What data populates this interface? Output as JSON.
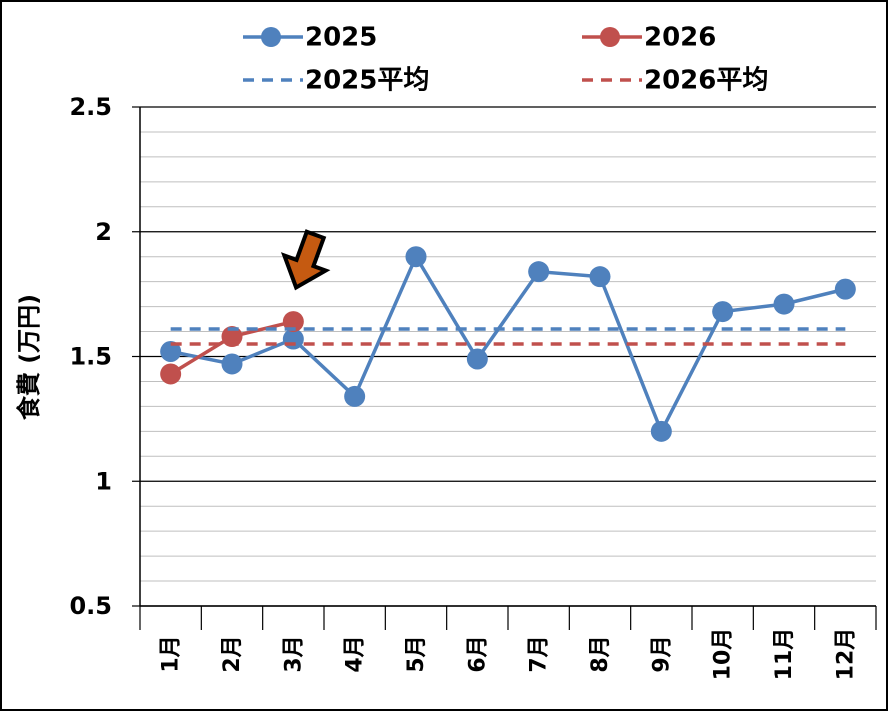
{
  "chart_data": {
    "type": "line",
    "y_label": "食費 (万円)",
    "categories": [
      "1月",
      "2月",
      "3月",
      "4月",
      "5月",
      "6月",
      "7月",
      "8月",
      "9月",
      "10月",
      "11月",
      "12月"
    ],
    "series": [
      {
        "name": "2025",
        "color": "#4f81bd",
        "values": [
          1.52,
          1.47,
          1.57,
          1.34,
          1.9,
          1.49,
          1.84,
          1.82,
          1.2,
          1.68,
          1.71,
          1.77
        ]
      },
      {
        "name": "2026",
        "color": "#c0504d",
        "values": [
          1.43,
          1.58,
          1.64,
          null,
          null,
          null,
          null,
          null,
          null,
          null,
          null,
          null
        ]
      },
      {
        "name": "2025平均",
        "color": "#4f81bd",
        "dashed": true,
        "value": 1.61
      },
      {
        "name": "2026平均",
        "color": "#c0504d",
        "dashed": true,
        "value": 1.55
      }
    ],
    "ylim": [
      0.5,
      2.5
    ],
    "yticks": [
      0.5,
      1,
      1.5,
      2,
      2.5
    ],
    "y_minor_ticks": [
      0.6,
      0.7,
      0.8,
      0.9,
      1.1,
      1.2,
      1.3,
      1.4,
      1.6,
      1.7,
      1.8,
      1.9,
      2.1,
      2.2,
      2.3,
      2.4
    ],
    "grid": true,
    "legend": "top"
  }
}
